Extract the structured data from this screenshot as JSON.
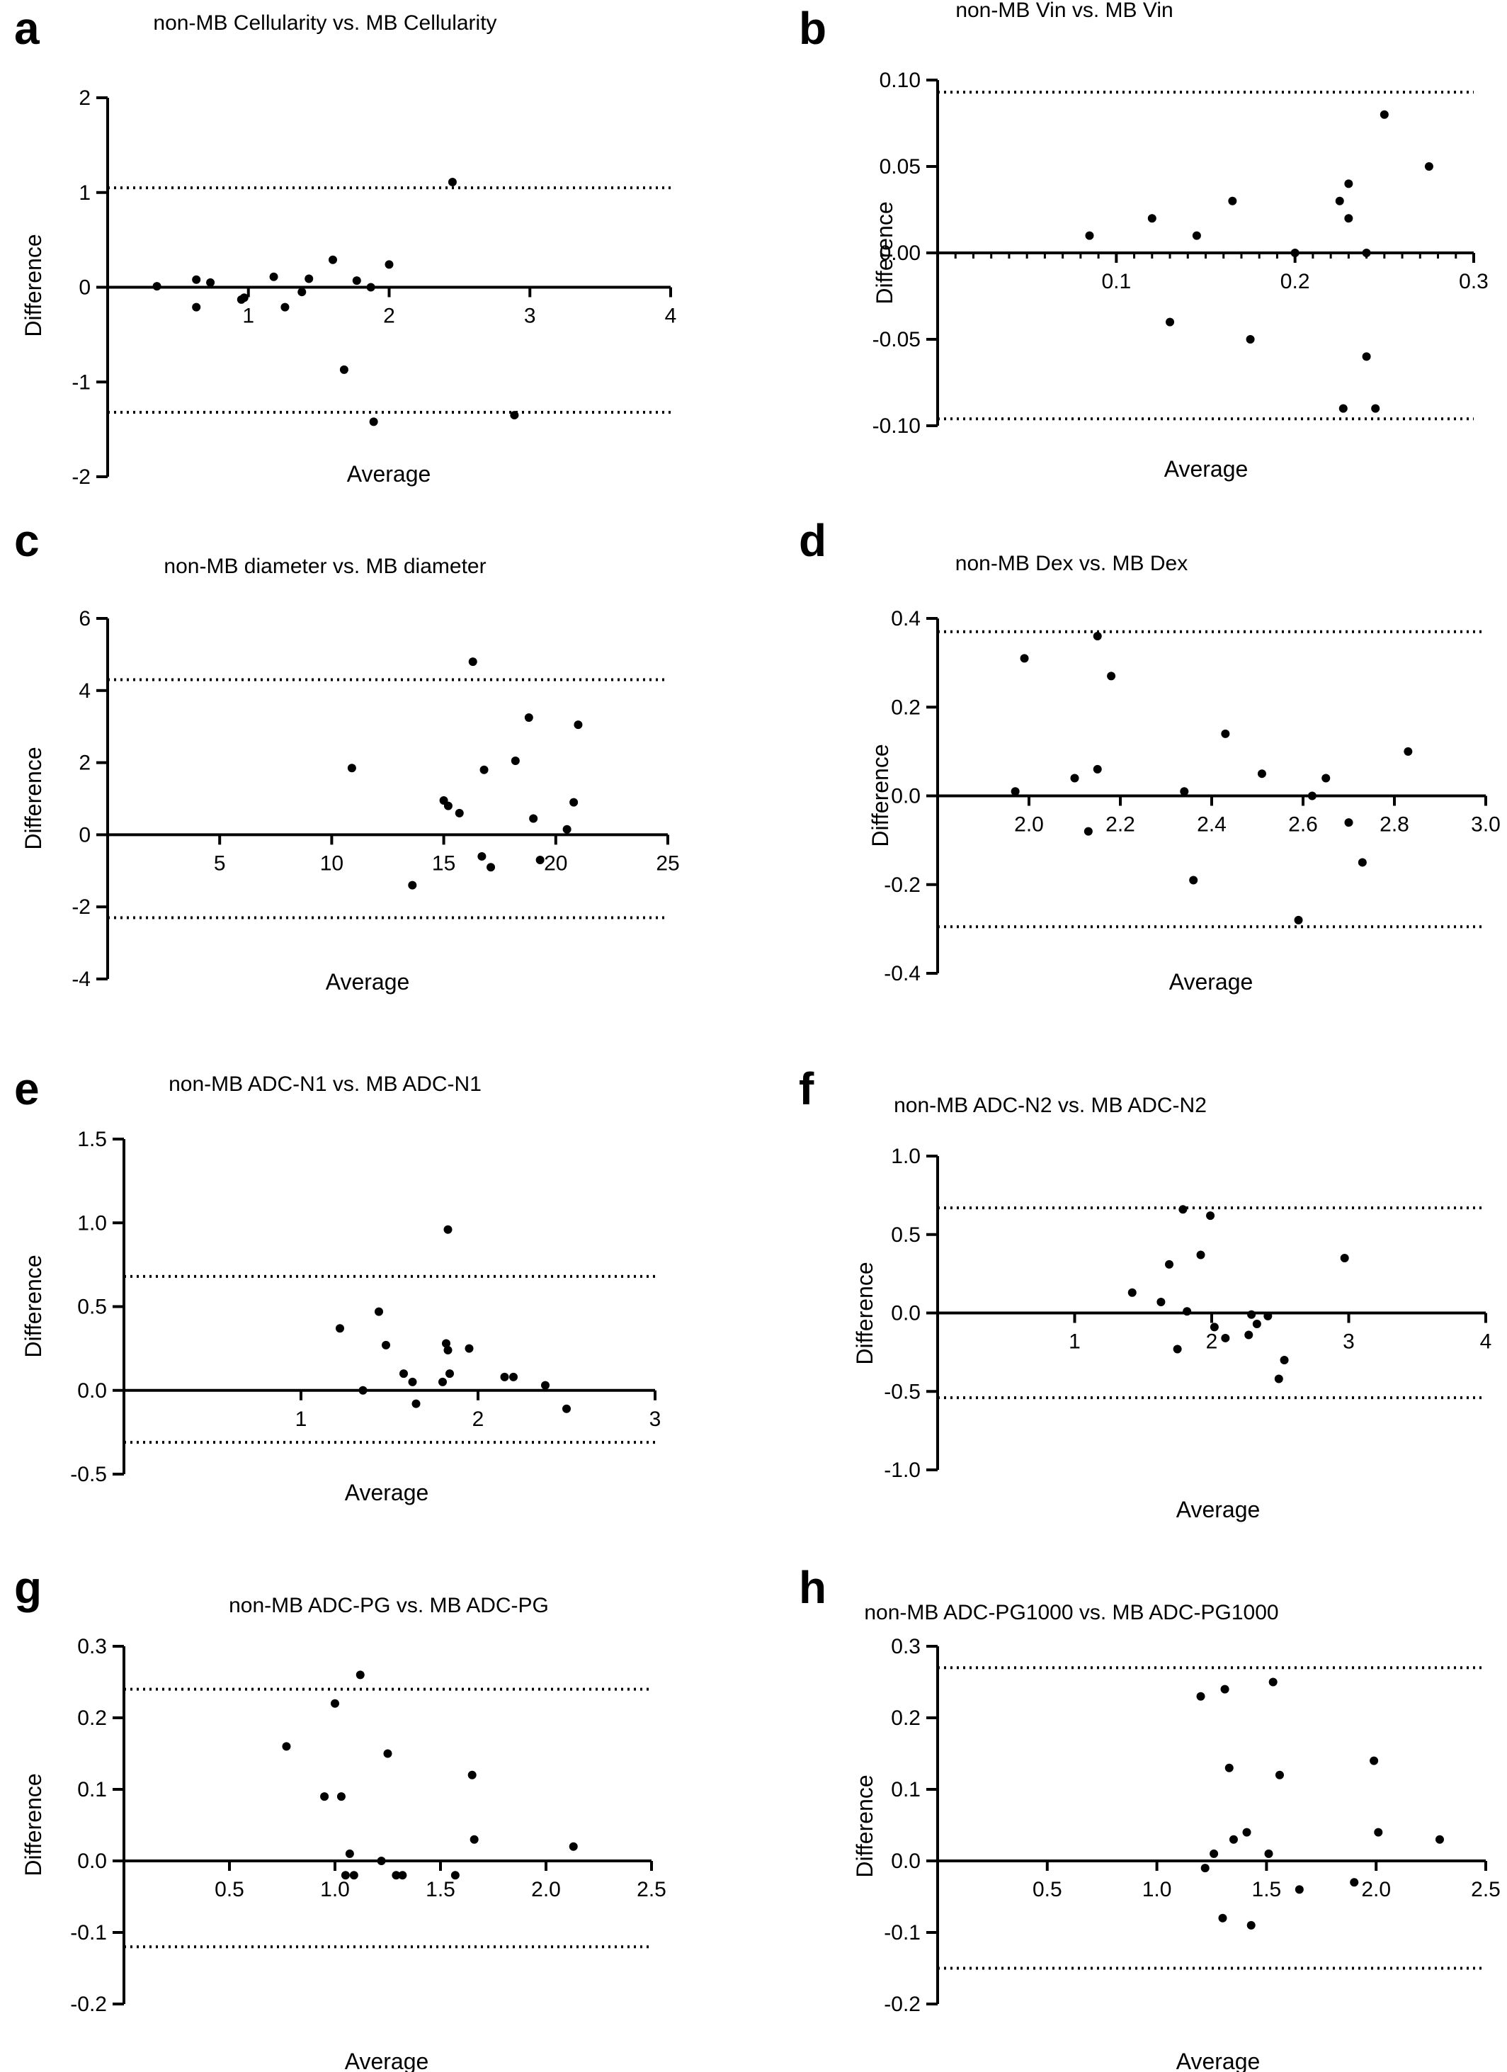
{
  "chart_data": [
    {
      "panel": "a",
      "type": "scatter",
      "title": "non-MB Cellularity vs. MB Cellularity",
      "xlabel": "Average",
      "ylabel": "Difference",
      "xlim": [
        0,
        4
      ],
      "ylim": [
        -2,
        2
      ],
      "xticks": [
        1,
        2,
        3,
        4
      ],
      "xtick_labels": [
        "1",
        "2",
        "3",
        "4"
      ],
      "yticks": [
        -2,
        -1,
        0,
        1,
        2
      ],
      "ytick_labels": [
        "-2",
        "-1",
        "0",
        "1",
        "2"
      ],
      "ref_lines": [
        1.05,
        -1.32
      ],
      "points": [
        {
          "x": 0.35,
          "y": 0.01
        },
        {
          "x": 0.63,
          "y": 0.08
        },
        {
          "x": 0.63,
          "y": -0.21
        },
        {
          "x": 0.73,
          "y": 0.05
        },
        {
          "x": 0.95,
          "y": -0.13
        },
        {
          "x": 0.97,
          "y": -0.11
        },
        {
          "x": 1.18,
          "y": 0.11
        },
        {
          "x": 1.26,
          "y": -0.21
        },
        {
          "x": 1.38,
          "y": -0.05
        },
        {
          "x": 1.43,
          "y": 0.09
        },
        {
          "x": 1.6,
          "y": 0.29
        },
        {
          "x": 1.68,
          "y": -0.87
        },
        {
          "x": 1.77,
          "y": 0.07
        },
        {
          "x": 1.87,
          "y": 0.0
        },
        {
          "x": 1.89,
          "y": -1.42
        },
        {
          "x": 2.0,
          "y": 0.24
        },
        {
          "x": 2.45,
          "y": 1.11
        },
        {
          "x": 2.89,
          "y": -1.35
        }
      ]
    },
    {
      "panel": "b",
      "type": "scatter",
      "title": "non-MB Vin vs. MB Vin",
      "xlabel": "Average",
      "ylabel": "Difference",
      "xlim": [
        0,
        0.3
      ],
      "ylim": [
        -0.1,
        0.1
      ],
      "xticks": [
        0.1,
        0.2,
        0.3
      ],
      "xtick_labels": [
        "0.1",
        "0.2",
        "0.3"
      ],
      "yticks": [
        -0.1,
        -0.05,
        0.0,
        0.05,
        0.1
      ],
      "ytick_labels": [
        "-0.10",
        "-0.05",
        "0.00",
        "0.05",
        "0.10"
      ],
      "ref_lines": [
        0.093,
        -0.096
      ],
      "points": [
        {
          "x": 0.085,
          "y": 0.01
        },
        {
          "x": 0.12,
          "y": 0.02
        },
        {
          "x": 0.13,
          "y": -0.04
        },
        {
          "x": 0.145,
          "y": 0.01
        },
        {
          "x": 0.165,
          "y": 0.03
        },
        {
          "x": 0.175,
          "y": -0.05
        },
        {
          "x": 0.2,
          "y": 0.0
        },
        {
          "x": 0.225,
          "y": 0.03
        },
        {
          "x": 0.227,
          "y": -0.09
        },
        {
          "x": 0.23,
          "y": 0.04
        },
        {
          "x": 0.23,
          "y": 0.02
        },
        {
          "x": 0.24,
          "y": 0.0
        },
        {
          "x": 0.24,
          "y": -0.06
        },
        {
          "x": 0.245,
          "y": -0.09
        },
        {
          "x": 0.25,
          "y": 0.08
        },
        {
          "x": 0.275,
          "y": 0.05
        }
      ]
    },
    {
      "panel": "c",
      "type": "scatter",
      "title": "non-MB diameter vs. MB diameter",
      "xlabel": "Average",
      "ylabel": "Difference",
      "xlim": [
        0,
        25
      ],
      "ylim": [
        -4,
        6
      ],
      "xticks": [
        5,
        10,
        15,
        20,
        25
      ],
      "xtick_labels": [
        "5",
        "10",
        "15",
        "20",
        "25"
      ],
      "yticks": [
        -4,
        -2,
        0,
        2,
        4,
        6
      ],
      "ytick_labels": [
        "-4",
        "-2",
        "0",
        "2",
        "4",
        "6"
      ],
      "ref_lines": [
        4.3,
        -2.3
      ],
      "points": [
        {
          "x": 10.9,
          "y": 1.85
        },
        {
          "x": 13.6,
          "y": -1.4
        },
        {
          "x": 15.0,
          "y": 0.95
        },
        {
          "x": 15.2,
          "y": 0.8
        },
        {
          "x": 15.7,
          "y": 0.6
        },
        {
          "x": 16.3,
          "y": 4.8
        },
        {
          "x": 16.7,
          "y": -0.6
        },
        {
          "x": 16.8,
          "y": 1.8
        },
        {
          "x": 17.1,
          "y": -0.9
        },
        {
          "x": 18.2,
          "y": 2.05
        },
        {
          "x": 18.8,
          "y": 3.25
        },
        {
          "x": 19.0,
          "y": 0.45
        },
        {
          "x": 19.3,
          "y": -0.7
        },
        {
          "x": 20.5,
          "y": 0.15
        },
        {
          "x": 20.8,
          "y": 0.9
        },
        {
          "x": 21.0,
          "y": 3.05
        }
      ]
    },
    {
      "panel": "d",
      "type": "scatter",
      "title": "non-MB Dex vs. MB Dex",
      "xlabel": "Average",
      "ylabel": "Difference",
      "xlim": [
        1.8,
        3.0
      ],
      "ylim": [
        -0.4,
        0.4
      ],
      "xticks": [
        2.0,
        2.2,
        2.4,
        2.6,
        2.8,
        3.0
      ],
      "xtick_labels": [
        "2.0",
        "2.2",
        "2.4",
        "2.6",
        "2.8",
        "3.0"
      ],
      "yticks": [
        -0.4,
        -0.2,
        0.0,
        0.2,
        0.4
      ],
      "ytick_labels": [
        "-0.4",
        "-0.2",
        "0.0",
        "0.2",
        "0.4"
      ],
      "ref_lines": [
        0.37,
        -0.295
      ],
      "points": [
        {
          "x": 1.97,
          "y": 0.01
        },
        {
          "x": 1.99,
          "y": 0.31
        },
        {
          "x": 2.1,
          "y": 0.04
        },
        {
          "x": 2.13,
          "y": -0.08
        },
        {
          "x": 2.15,
          "y": 0.36
        },
        {
          "x": 2.15,
          "y": 0.06
        },
        {
          "x": 2.18,
          "y": 0.27
        },
        {
          "x": 2.34,
          "y": 0.01
        },
        {
          "x": 2.36,
          "y": -0.19
        },
        {
          "x": 2.43,
          "y": 0.14
        },
        {
          "x": 2.51,
          "y": 0.05
        },
        {
          "x": 2.59,
          "y": -0.28
        },
        {
          "x": 2.62,
          "y": 0.0
        },
        {
          "x": 2.65,
          "y": 0.04
        },
        {
          "x": 2.7,
          "y": -0.06
        },
        {
          "x": 2.73,
          "y": -0.15
        },
        {
          "x": 2.83,
          "y": 0.1
        }
      ]
    },
    {
      "panel": "e",
      "type": "scatter",
      "title": "non-MB ADC-N1 vs. MB ADC-N1",
      "xlabel": "Average",
      "ylabel": "Difference",
      "xlim": [
        0,
        3
      ],
      "ylim": [
        -0.5,
        1.5
      ],
      "xticks": [
        1,
        2,
        3
      ],
      "xtick_labels": [
        "1",
        "2",
        "3"
      ],
      "yticks": [
        -0.5,
        0.0,
        0.5,
        1.0,
        1.5
      ],
      "ytick_labels": [
        "-0.5",
        "0.0",
        "0.5",
        "1.0",
        "1.5"
      ],
      "ref_lines": [
        0.68,
        -0.31
      ],
      "points": [
        {
          "x": 1.22,
          "y": 0.37
        },
        {
          "x": 1.35,
          "y": 0.0
        },
        {
          "x": 1.44,
          "y": 0.47
        },
        {
          "x": 1.48,
          "y": 0.27
        },
        {
          "x": 1.58,
          "y": 0.1
        },
        {
          "x": 1.63,
          "y": 0.05
        },
        {
          "x": 1.65,
          "y": -0.08
        },
        {
          "x": 1.8,
          "y": 0.05
        },
        {
          "x": 1.82,
          "y": 0.28
        },
        {
          "x": 1.83,
          "y": 0.96
        },
        {
          "x": 1.83,
          "y": 0.24
        },
        {
          "x": 1.84,
          "y": 0.1
        },
        {
          "x": 1.95,
          "y": 0.25
        },
        {
          "x": 2.15,
          "y": 0.08
        },
        {
          "x": 2.2,
          "y": 0.08
        },
        {
          "x": 2.38,
          "y": 0.03
        },
        {
          "x": 2.5,
          "y": -0.11
        }
      ]
    },
    {
      "panel": "f",
      "type": "scatter",
      "title": "non-MB ADC-N2  vs. MB ADC-N2",
      "xlabel": "Average",
      "ylabel": "Difference",
      "xlim": [
        0,
        4
      ],
      "ylim": [
        -1.0,
        1.0
      ],
      "xticks": [
        1,
        2,
        3,
        4
      ],
      "xtick_labels": [
        "1",
        "2",
        "3",
        "4"
      ],
      "yticks": [
        -1.0,
        -0.5,
        0.0,
        0.5,
        1.0
      ],
      "ytick_labels": [
        "-1.0",
        "-0.5",
        "0.0",
        "0.5",
        "1.0"
      ],
      "ref_lines": [
        0.67,
        -0.54
      ],
      "points": [
        {
          "x": 1.42,
          "y": 0.13
        },
        {
          "x": 1.63,
          "y": 0.07
        },
        {
          "x": 1.69,
          "y": 0.31
        },
        {
          "x": 1.75,
          "y": -0.23
        },
        {
          "x": 1.79,
          "y": 0.66
        },
        {
          "x": 1.82,
          "y": 0.01
        },
        {
          "x": 1.92,
          "y": 0.37
        },
        {
          "x": 1.99,
          "y": 0.62
        },
        {
          "x": 2.02,
          "y": -0.09
        },
        {
          "x": 2.1,
          "y": -0.16
        },
        {
          "x": 2.27,
          "y": -0.14
        },
        {
          "x": 2.29,
          "y": -0.01
        },
        {
          "x": 2.33,
          "y": -0.07
        },
        {
          "x": 2.41,
          "y": -0.02
        },
        {
          "x": 2.49,
          "y": -0.42
        },
        {
          "x": 2.53,
          "y": -0.3
        },
        {
          "x": 2.97,
          "y": 0.35
        }
      ]
    },
    {
      "panel": "g",
      "type": "scatter",
      "title": "non-MB ADC-PG vs. MB ADC-PG",
      "xlabel": "Average",
      "ylabel": "Difference",
      "xlim": [
        0,
        2.5
      ],
      "ylim": [
        -0.2,
        0.3
      ],
      "xticks": [
        0.5,
        1.0,
        1.5,
        2.0,
        2.5
      ],
      "xtick_labels": [
        "0.5",
        "1.0",
        "1.5",
        "2.0",
        "2.5"
      ],
      "yticks": [
        -0.2,
        -0.1,
        0.0,
        0.1,
        0.2,
        0.3
      ],
      "ytick_labels": [
        "-0.2",
        "-0.1",
        "0.0",
        "0.1",
        "0.2",
        "0.3"
      ],
      "ref_lines": [
        0.24,
        -0.12
      ],
      "points": [
        {
          "x": 0.77,
          "y": 0.16
        },
        {
          "x": 0.95,
          "y": 0.09
        },
        {
          "x": 1.0,
          "y": 0.22
        },
        {
          "x": 1.03,
          "y": 0.09
        },
        {
          "x": 1.05,
          "y": -0.02
        },
        {
          "x": 1.07,
          "y": 0.01
        },
        {
          "x": 1.09,
          "y": -0.02
        },
        {
          "x": 1.12,
          "y": 0.26
        },
        {
          "x": 1.22,
          "y": 0.0
        },
        {
          "x": 1.25,
          "y": 0.15
        },
        {
          "x": 1.29,
          "y": -0.02
        },
        {
          "x": 1.32,
          "y": -0.02
        },
        {
          "x": 1.57,
          "y": -0.02
        },
        {
          "x": 1.65,
          "y": 0.12
        },
        {
          "x": 1.66,
          "y": 0.03
        },
        {
          "x": 2.13,
          "y": 0.02
        }
      ]
    },
    {
      "panel": "h",
      "type": "scatter",
      "title": "non-MB ADC-PG1000 vs. MB ADC-PG1000",
      "xlabel": "Average",
      "ylabel": "Difference",
      "xlim": [
        0,
        2.5
      ],
      "ylim": [
        -0.2,
        0.3
      ],
      "xticks": [
        0.5,
        1.0,
        1.5,
        2.0,
        2.5
      ],
      "xtick_labels": [
        "0.5",
        "1.0",
        "1.5",
        "2.0",
        "2.5"
      ],
      "yticks": [
        -0.2,
        -0.1,
        0.0,
        0.1,
        0.2,
        0.3
      ],
      "ytick_labels": [
        "-0.2",
        "-0.1",
        "0.0",
        "0.1",
        "0.2",
        "0.3"
      ],
      "ref_lines": [
        0.27,
        -0.15
      ],
      "points": [
        {
          "x": 1.2,
          "y": 0.23
        },
        {
          "x": 1.22,
          "y": -0.01
        },
        {
          "x": 1.26,
          "y": 0.01
        },
        {
          "x": 1.3,
          "y": -0.08
        },
        {
          "x": 1.31,
          "y": 0.24
        },
        {
          "x": 1.33,
          "y": 0.13
        },
        {
          "x": 1.35,
          "y": 0.03
        },
        {
          "x": 1.41,
          "y": 0.04
        },
        {
          "x": 1.43,
          "y": -0.09
        },
        {
          "x": 1.51,
          "y": 0.01
        },
        {
          "x": 1.53,
          "y": 0.25
        },
        {
          "x": 1.56,
          "y": 0.12
        },
        {
          "x": 1.65,
          "y": -0.04
        },
        {
          "x": 1.9,
          "y": -0.03
        },
        {
          "x": 1.99,
          "y": 0.14
        },
        {
          "x": 2.01,
          "y": 0.04
        },
        {
          "x": 2.29,
          "y": 0.03
        }
      ]
    }
  ],
  "panel_letters": [
    "a",
    "b",
    "c",
    "d",
    "e",
    "f",
    "g",
    "h"
  ]
}
